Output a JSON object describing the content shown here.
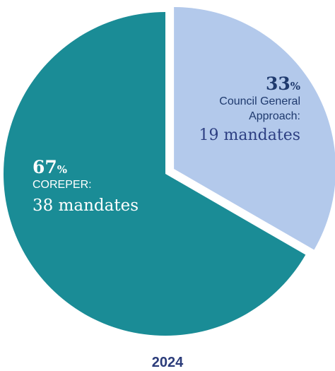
{
  "chart_data": {
    "type": "pie",
    "title": "2024",
    "slices": [
      {
        "label": "Council General Approach:",
        "count_label": "19 mandates",
        "count": 19,
        "percent": 33,
        "percent_text": "33",
        "color": "#b3c9eb",
        "exploded": true
      },
      {
        "label": "COREPER:",
        "count_label": "38 mandates",
        "count": 38,
        "percent": 67,
        "percent_text": "67",
        "color": "#1a8c96",
        "exploded": false
      }
    ],
    "percent_sign": "%"
  }
}
